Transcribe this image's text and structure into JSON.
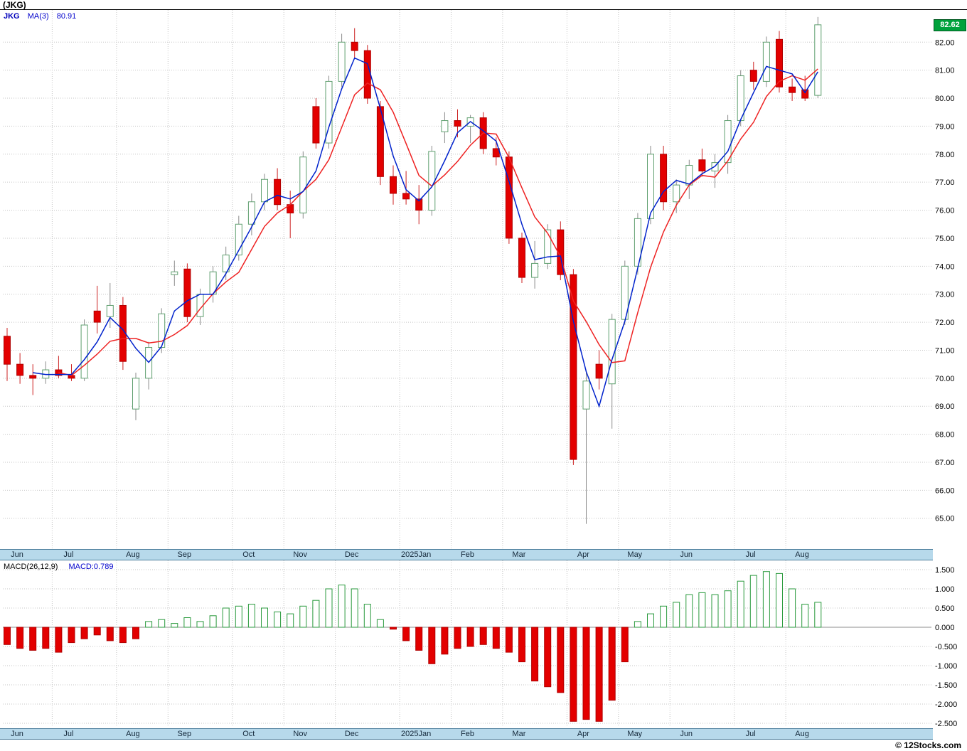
{
  "header": {
    "title": "(JKG)"
  },
  "legend": {
    "symbol": "JKG",
    "ma_label": "MA(3)",
    "ma_value": "80.91",
    "last_price": "82.62"
  },
  "macd": {
    "params_label": "MACD(26,12,9)",
    "value_label": "MACD:0.789"
  },
  "footer": {
    "copyright": "© 12Stocks.com"
  },
  "axes": {
    "price_ticks": [
      "82.00",
      "81.00",
      "80.00",
      "79.00",
      "78.00",
      "77.00",
      "76.00",
      "75.00",
      "74.00",
      "73.00",
      "72.00",
      "71.00",
      "70.00",
      "69.00",
      "68.00",
      "67.00",
      "66.00",
      "65.00"
    ],
    "macd_ticks": [
      "1.500",
      "1.000",
      "0.500",
      "0.000",
      "-0.500",
      "-1.000",
      "-1.500",
      "-2.000",
      "-2.500"
    ],
    "months": [
      {
        "label": "Jun",
        "start_index": 0
      },
      {
        "label": "Jul",
        "start_index": 4
      },
      {
        "label": "Aug",
        "start_index": 9
      },
      {
        "label": "Sep",
        "start_index": 13
      },
      {
        "label": "Oct",
        "start_index": 18
      },
      {
        "label": "Nov",
        "start_index": 22
      },
      {
        "label": "Dec",
        "start_index": 26
      },
      {
        "label": "2025Jan",
        "start_index": 31
      },
      {
        "label": "Feb",
        "start_index": 35
      },
      {
        "label": "Mar",
        "start_index": 39
      },
      {
        "label": "Apr",
        "start_index": 44
      },
      {
        "label": "May",
        "start_index": 48
      },
      {
        "label": "Jun",
        "start_index": 52
      },
      {
        "label": "Jul",
        "start_index": 57
      },
      {
        "label": "Aug",
        "start_index": 61
      }
    ]
  },
  "chart_data": [
    {
      "type": "candlestick",
      "title": "(JKG) weekly OHLC with MA(3)",
      "period": "weekly",
      "ylim": [
        63.9,
        83.15
      ],
      "y_tick_values": [
        82,
        81,
        80,
        79,
        78,
        77,
        76,
        75,
        74,
        73,
        72,
        71,
        70,
        69,
        68,
        67,
        66,
        65
      ],
      "last_close": 82.62,
      "ma3_last": 80.91,
      "up_color": "#5f9f6f",
      "down_color": "#e30000",
      "ma_fast_color": "#0022cc",
      "ma_slow_color": "#ee2222",
      "ohlc": [
        [
          71.5,
          71.8,
          69.9,
          70.5
        ],
        [
          70.5,
          70.9,
          69.8,
          70.1
        ],
        [
          70.1,
          70.5,
          69.4,
          70.0
        ],
        [
          70.0,
          70.6,
          69.8,
          70.3
        ],
        [
          70.3,
          70.8,
          70.0,
          70.1
        ],
        [
          70.1,
          70.5,
          69.9,
          70.0
        ],
        [
          70.0,
          72.1,
          69.9,
          71.9
        ],
        [
          72.4,
          73.3,
          71.6,
          72.0
        ],
        [
          72.2,
          73.4,
          71.8,
          72.6
        ],
        [
          72.6,
          72.9,
          70.3,
          70.6
        ],
        [
          68.9,
          70.2,
          68.5,
          70.0
        ],
        [
          70.0,
          71.3,
          69.6,
          71.1
        ],
        [
          71.1,
          72.5,
          70.9,
          72.3
        ],
        [
          73.7,
          74.2,
          73.3,
          73.8
        ],
        [
          73.9,
          74.1,
          72.0,
          72.2
        ],
        [
          72.2,
          73.2,
          71.9,
          73.0
        ],
        [
          73.0,
          74.0,
          72.7,
          73.8
        ],
        [
          73.8,
          74.7,
          73.5,
          74.4
        ],
        [
          74.4,
          75.8,
          74.2,
          75.5
        ],
        [
          75.5,
          76.6,
          75.1,
          76.3
        ],
        [
          76.3,
          77.3,
          76.0,
          77.1
        ],
        [
          77.1,
          77.5,
          76.0,
          76.2
        ],
        [
          76.2,
          76.7,
          75.0,
          75.9
        ],
        [
          75.9,
          78.1,
          75.7,
          77.9
        ],
        [
          79.7,
          80.0,
          78.2,
          78.4
        ],
        [
          78.4,
          80.8,
          78.2,
          80.6
        ],
        [
          80.6,
          82.3,
          80.4,
          82.0
        ],
        [
          82.0,
          82.5,
          81.4,
          81.7
        ],
        [
          81.7,
          81.9,
          79.8,
          80.0
        ],
        [
          79.7,
          79.9,
          76.9,
          77.2
        ],
        [
          77.2,
          77.6,
          76.2,
          76.6
        ],
        [
          76.6,
          77.4,
          76.2,
          76.4
        ],
        [
          76.4,
          76.9,
          75.5,
          76.0
        ],
        [
          76.0,
          78.3,
          75.8,
          78.1
        ],
        [
          78.8,
          79.5,
          78.4,
          79.2
        ],
        [
          79.2,
          79.6,
          78.6,
          79.0
        ],
        [
          79.0,
          79.4,
          78.4,
          79.3
        ],
        [
          79.3,
          79.5,
          78.0,
          78.2
        ],
        [
          78.2,
          78.6,
          77.6,
          77.9
        ],
        [
          77.9,
          78.1,
          74.8,
          75.0
        ],
        [
          75.0,
          75.2,
          73.4,
          73.6
        ],
        [
          73.6,
          74.9,
          73.2,
          74.1
        ],
        [
          74.1,
          75.5,
          73.9,
          75.3
        ],
        [
          75.3,
          75.6,
          73.5,
          73.7
        ],
        [
          73.7,
          73.9,
          66.9,
          67.1
        ],
        [
          68.9,
          70.2,
          64.8,
          69.9
        ],
        [
          70.5,
          71.0,
          69.6,
          70.0
        ],
        [
          69.8,
          72.3,
          68.2,
          72.1
        ],
        [
          72.1,
          74.2,
          71.9,
          74.0
        ],
        [
          74.0,
          75.9,
          73.7,
          75.7
        ],
        [
          75.7,
          78.3,
          75.5,
          78.0
        ],
        [
          78.0,
          78.3,
          76.0,
          76.3
        ],
        [
          76.3,
          77.1,
          75.9,
          76.9
        ],
        [
          76.9,
          77.8,
          76.4,
          77.6
        ],
        [
          77.8,
          78.2,
          77.2,
          77.4
        ],
        [
          77.4,
          78.0,
          76.8,
          77.7
        ],
        [
          77.7,
          79.4,
          77.3,
          79.2
        ],
        [
          79.2,
          81.0,
          79.0,
          80.8
        ],
        [
          81.0,
          81.3,
          80.3,
          80.6
        ],
        [
          80.6,
          82.2,
          80.4,
          82.0
        ],
        [
          82.1,
          82.4,
          80.2,
          80.4
        ],
        [
          80.4,
          80.7,
          79.9,
          80.2
        ],
        [
          80.3,
          80.8,
          79.9,
          80.0
        ],
        [
          80.1,
          82.9,
          80.0,
          82.62
        ]
      ]
    },
    {
      "type": "bar",
      "title": "MACD(26,12,9) histogram",
      "ylim": [
        -2.59,
        1.74
      ],
      "zero_line": true,
      "macd_line_value": 0.789,
      "pos_color": "#2a9a3d",
      "neg_color": "#e30000",
      "values": [
        -0.45,
        -0.55,
        -0.6,
        -0.55,
        -0.65,
        -0.4,
        -0.3,
        -0.2,
        -0.35,
        -0.4,
        -0.3,
        0.15,
        0.2,
        0.1,
        0.25,
        0.15,
        0.3,
        0.5,
        0.55,
        0.6,
        0.5,
        0.4,
        0.35,
        0.55,
        0.7,
        1.0,
        1.1,
        1.0,
        0.6,
        0.2,
        -0.05,
        -0.35,
        -0.6,
        -0.95,
        -0.7,
        -0.55,
        -0.5,
        -0.45,
        -0.55,
        -0.65,
        -0.9,
        -1.4,
        -1.55,
        -1.7,
        -2.45,
        -2.4,
        -2.45,
        -1.9,
        -0.9,
        0.15,
        0.35,
        0.55,
        0.65,
        0.85,
        0.9,
        0.85,
        0.95,
        1.2,
        1.35,
        1.45,
        1.4,
        1.0,
        0.6,
        0.65
      ]
    }
  ]
}
